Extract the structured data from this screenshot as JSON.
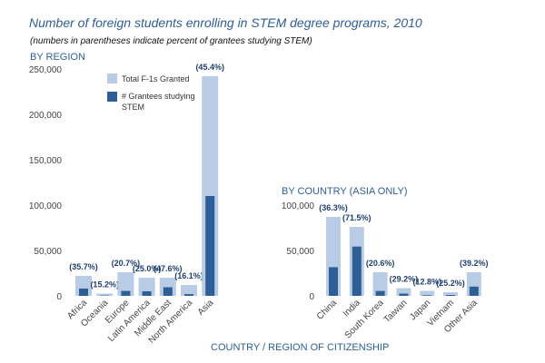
{
  "title": "Number of foreign students enrolling in STEM degree programs, 2010",
  "subtitle": "(numbers in parentheses indicate percent of grantees studying STEM)",
  "x_axis_title": "COUNTRY / REGION OF CITIZENSHIP",
  "colors": {
    "total": "#b8cce6",
    "stem": "#2e5e96"
  },
  "chart_data": [
    {
      "type": "bar",
      "title": "BY REGION",
      "categories": [
        "Africa",
        "Oceania",
        "Europe",
        "Latin America",
        "Middle East",
        "North America",
        "Asia"
      ],
      "series": [
        {
          "name": "Total F-1s Granted",
          "values": [
            22000,
            2500,
            26000,
            20000,
            20000,
            12000,
            242000
          ]
        },
        {
          "name": "# Grantees studying STEM",
          "values": [
            8000,
            400,
            5400,
            5000,
            9500,
            1900,
            110000
          ]
        }
      ],
      "percent_labels": [
        "(35.7%)",
        "(15.2%)",
        "(20.7%)",
        "(25.0%)",
        "(47.6%)",
        "(16.1%)",
        "(45.4%)"
      ],
      "yticks": [
        "0",
        "50,000",
        "100,000",
        "150,000",
        "200,000",
        "250,000"
      ],
      "ylim": [
        0,
        250000
      ],
      "grid": false,
      "legend_position": "top"
    },
    {
      "type": "bar",
      "title": "BY COUNTRY (ASIA ONLY)",
      "categories": [
        "China",
        "India",
        "South Korea",
        "Taiwan",
        "Japan",
        "Vietnam",
        "Other Asia"
      ],
      "series": [
        {
          "name": "Total F-1s Granted",
          "values": [
            87000,
            76000,
            26000,
            8500,
            5500,
            4000,
            26000
          ]
        },
        {
          "name": "# Grantees studying STEM",
          "values": [
            31600,
            54300,
            5400,
            2500,
            700,
            1000,
            10200
          ]
        }
      ],
      "percent_labels": [
        "(36.3%)",
        "(71.5%)",
        "(20.6%)",
        "(29.2%)",
        "(12.8%)",
        "(25.2%)",
        "(39.2%)"
      ],
      "yticks": [
        "0",
        "50,000",
        "100,000"
      ],
      "ylim": [
        0,
        100000
      ],
      "grid": false
    }
  ]
}
